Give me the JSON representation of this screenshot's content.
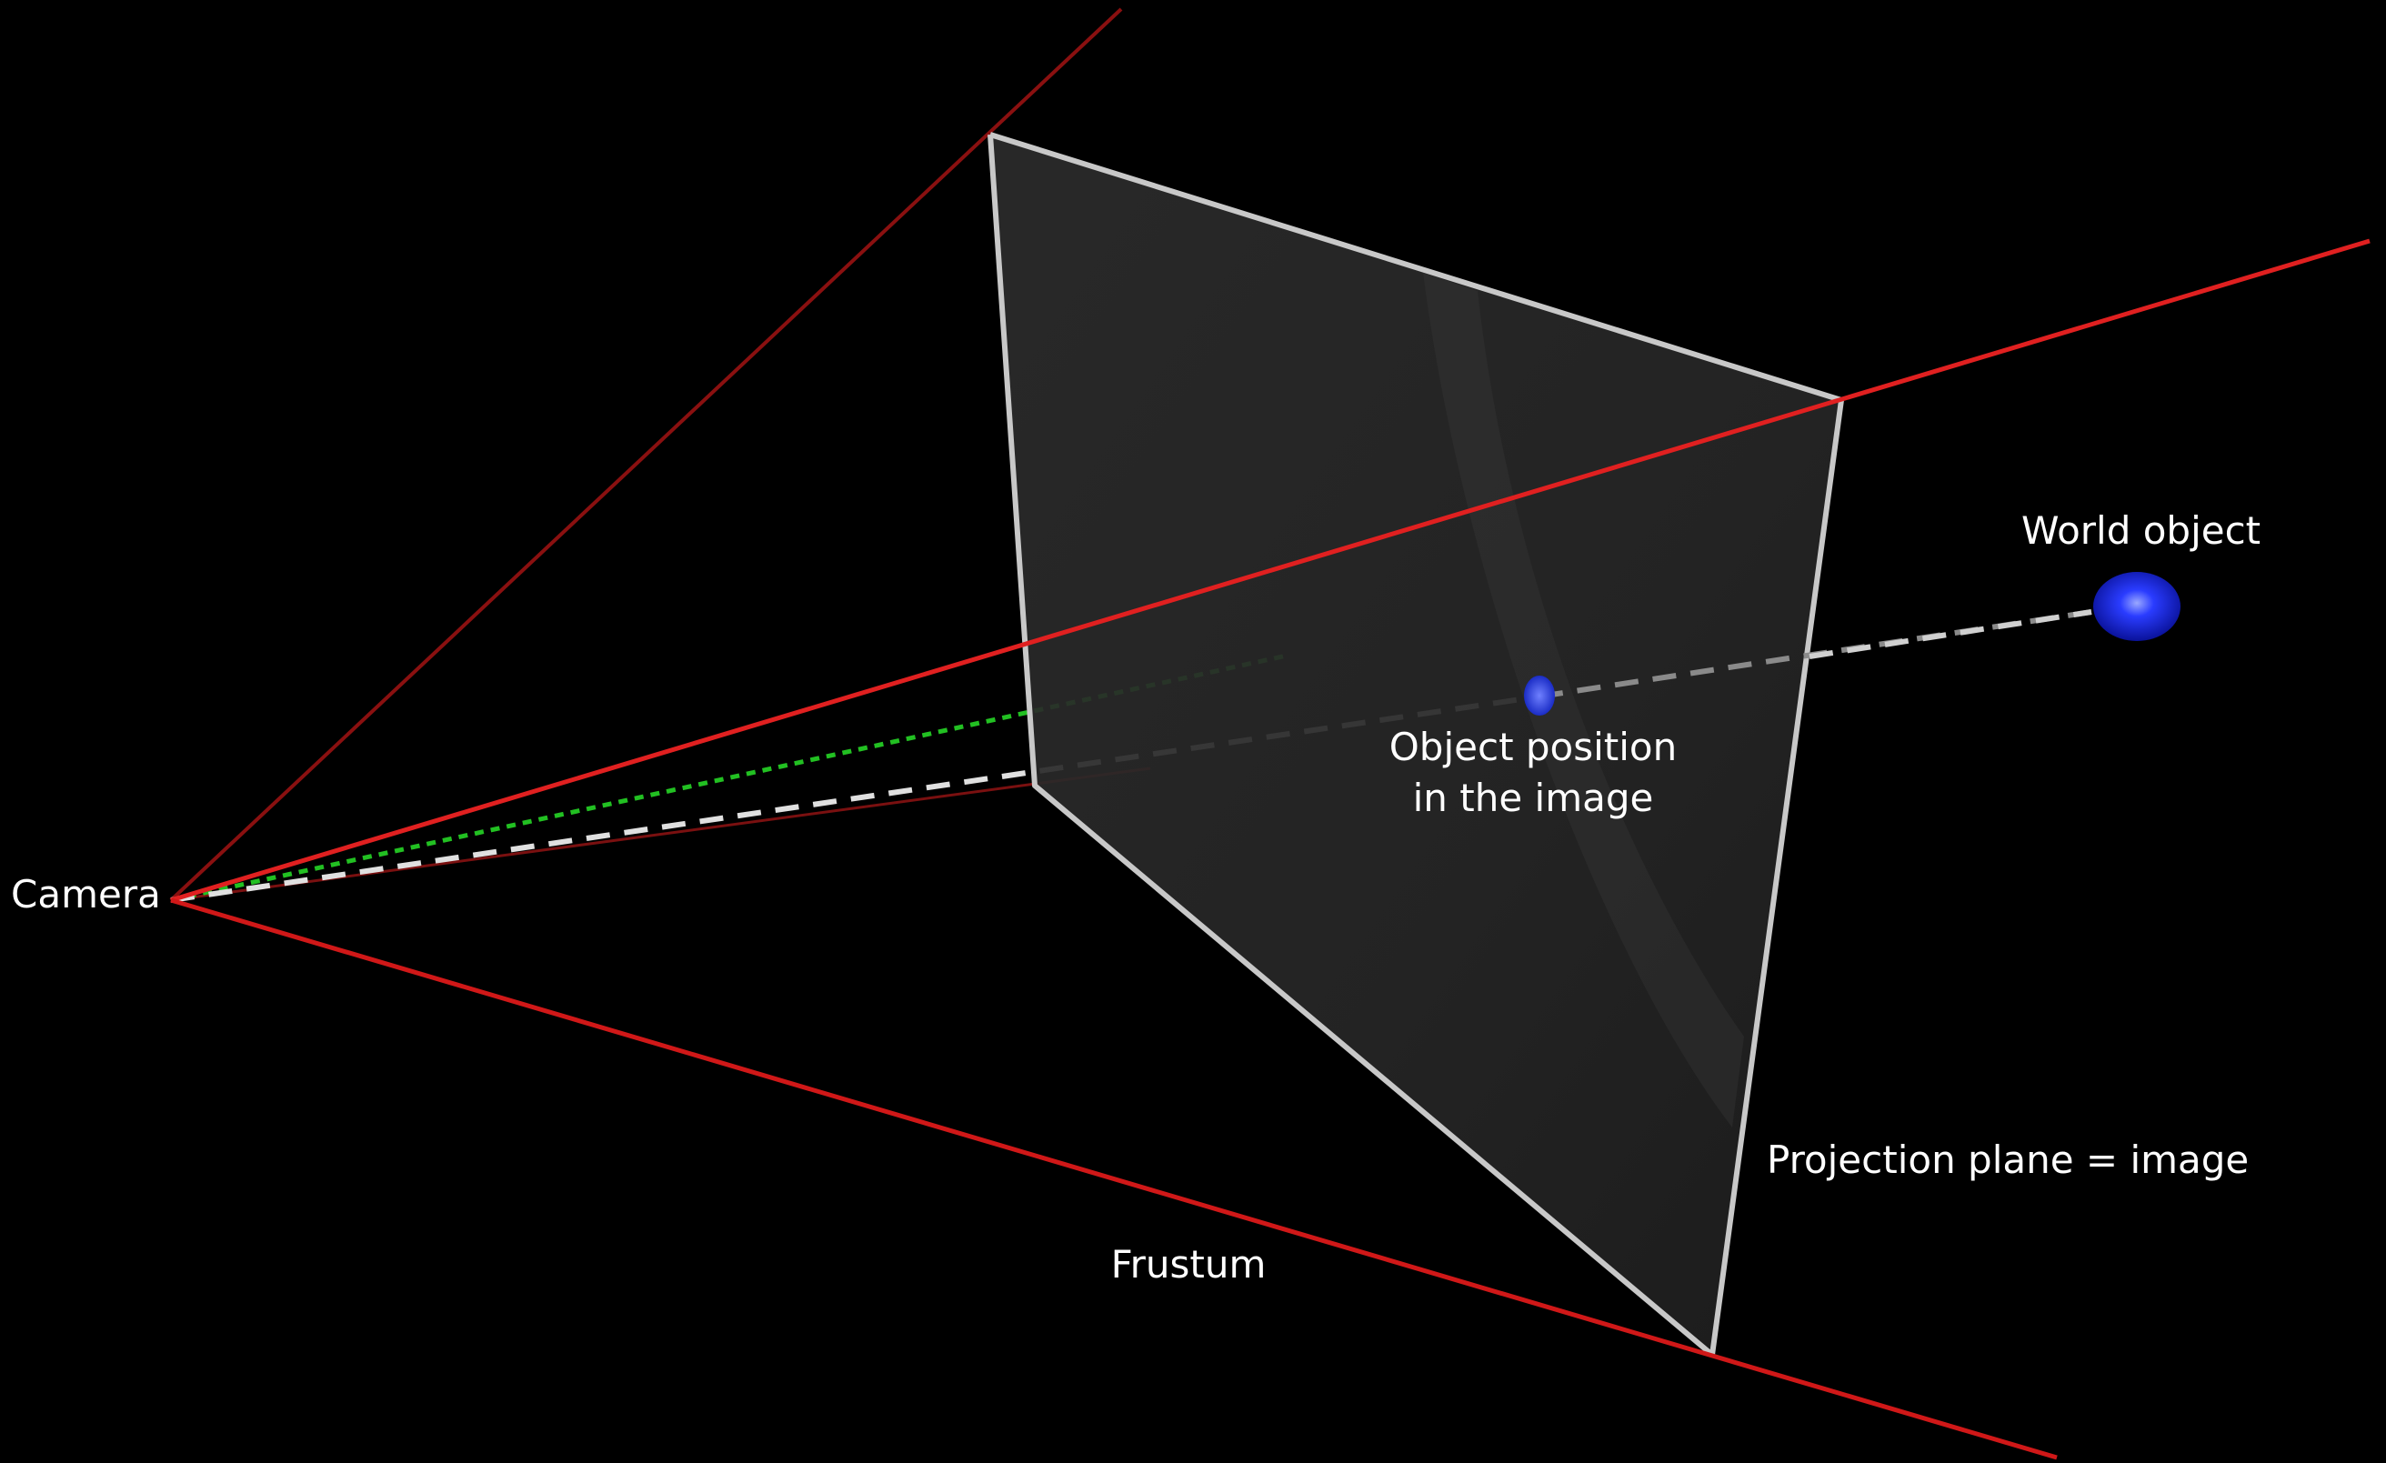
{
  "labels": {
    "camera": "Camera",
    "world_object": "World object",
    "object_position_line1": "Object position",
    "object_position_line2": "in the image",
    "projection_plane": "Projection plane = image",
    "frustum": "Frustum"
  },
  "colors": {
    "background": "#000000",
    "frustum_bright": "#e02020",
    "frustum_dark": "#8a1010",
    "plane_fill": "#2a2a2a",
    "plane_edge": "#c8c8c8",
    "ray": "#d8d8d8",
    "optical_axis": "#22c022",
    "object": "#2a3cff",
    "text": "#ffffff"
  }
}
